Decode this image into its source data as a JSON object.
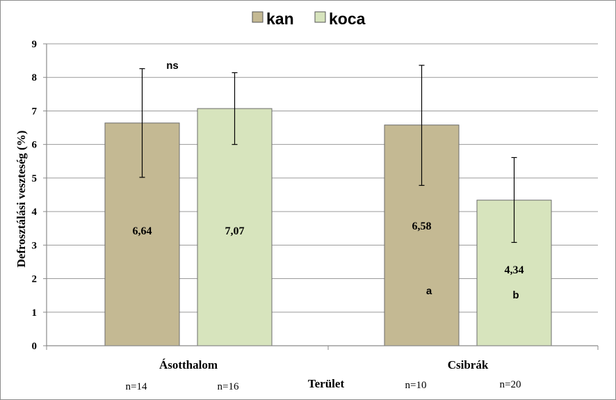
{
  "chart_data": {
    "type": "bar",
    "categories": [
      "Ásotthalom",
      "Csibrák"
    ],
    "series": [
      {
        "name": "kan",
        "color": "#c4b993",
        "values": [
          6.64,
          6.58
        ],
        "err_low": [
          5.02,
          4.78
        ],
        "err_high": [
          8.26,
          8.36
        ],
        "labels": [
          "6,64",
          "6,58"
        ]
      },
      {
        "name": "koca",
        "color": "#d7e4bd",
        "values": [
          7.07,
          4.34
        ],
        "err_low": [
          6.0,
          3.08
        ],
        "err_high": [
          8.14,
          5.61
        ],
        "labels": [
          "7,07",
          "4,34"
        ]
      }
    ],
    "ylabel": "Defrosztálási veszteség (%)",
    "xlabel": "Terület",
    "ylim": [
      0,
      9
    ],
    "yticks": [
      0,
      1,
      2,
      3,
      4,
      5,
      6,
      7,
      8,
      9
    ],
    "grid": true,
    "legend_position": "top-center",
    "sample_sizes": [
      "n=14",
      "n=16",
      "n=10",
      "n=20"
    ],
    "significance": {
      "Ásotthalom": "ns",
      "Csibrák_kan": "a",
      "Csibrák_koca": "b"
    }
  }
}
